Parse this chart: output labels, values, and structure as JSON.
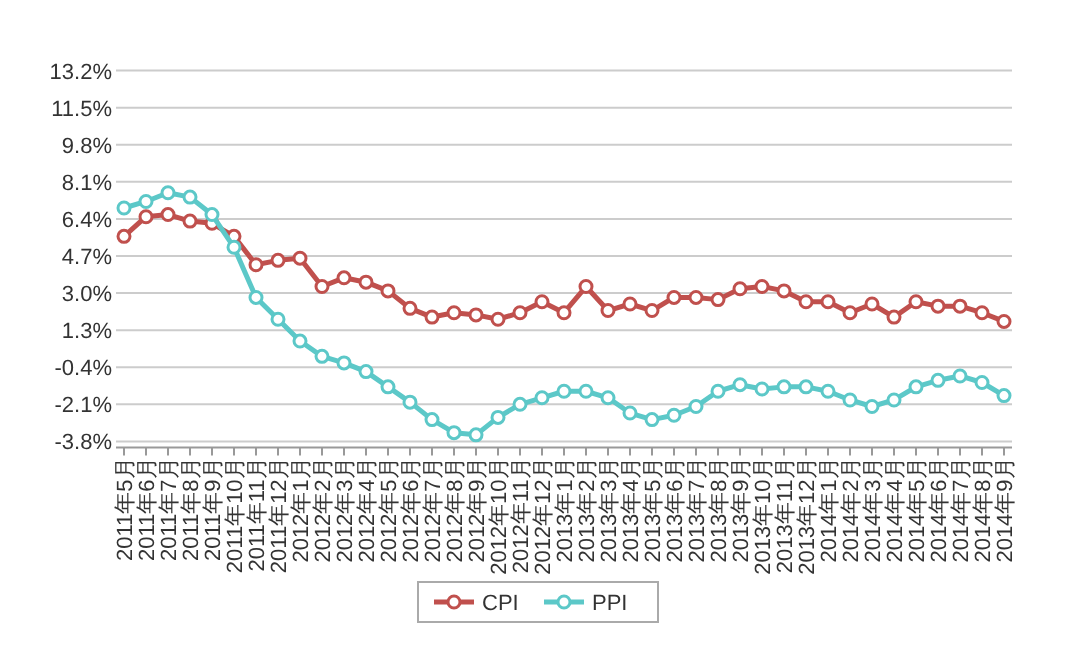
{
  "chart_data": {
    "type": "line",
    "categories": [
      "2011年5月",
      "2011年6月",
      "2011年7月",
      "2011年8月",
      "2011年9月",
      "2011年10月",
      "2011年11月",
      "2011年12月",
      "2012年1月",
      "2012年2月",
      "2012年3月",
      "2012年4月",
      "2012年5月",
      "2012年6月",
      "2012年7月",
      "2012年8月",
      "2012年9月",
      "2012年10月",
      "2012年11月",
      "2012年12月",
      "2013年1月",
      "2013年2月",
      "2013年3月",
      "2013年4月",
      "2013年5月",
      "2013年6月",
      "2013年7月",
      "2013年8月",
      "2013年9月",
      "2013年10月",
      "2013年11月",
      "2013年12月",
      "2014年1月",
      "2014年2月",
      "2014年3月",
      "2014年4月",
      "2014年5月",
      "2014年6月",
      "2014年7月",
      "2014年8月",
      "2014年9月"
    ],
    "series": [
      {
        "name": "CPI",
        "color": "#c0504d",
        "values": [
          5.6,
          6.5,
          6.6,
          6.3,
          6.2,
          5.6,
          4.3,
          4.5,
          4.6,
          3.3,
          3.7,
          3.5,
          3.1,
          2.3,
          1.9,
          2.1,
          2.0,
          1.8,
          2.1,
          2.6,
          2.1,
          3.3,
          2.2,
          2.5,
          2.2,
          2.8,
          2.8,
          2.7,
          3.2,
          3.3,
          3.1,
          2.6,
          2.6,
          2.1,
          2.5,
          1.9,
          2.6,
          2.4,
          2.4,
          2.1,
          1.7
        ]
      },
      {
        "name": "PPI",
        "color": "#5cc8c8",
        "values": [
          6.9,
          7.2,
          7.6,
          7.4,
          6.6,
          5.1,
          2.8,
          1.8,
          0.8,
          0.1,
          -0.2,
          -0.6,
          -1.3,
          -2.0,
          -2.8,
          -3.4,
          -3.5,
          -2.7,
          -2.1,
          -1.8,
          -1.5,
          -1.5,
          -1.8,
          -2.5,
          -2.8,
          -2.6,
          -2.2,
          -1.5,
          -1.2,
          -1.4,
          -1.3,
          -1.3,
          -1.5,
          -1.9,
          -2.2,
          -1.9,
          -1.3,
          -1.0,
          -0.8,
          -1.1,
          -1.7
        ]
      }
    ],
    "ylim": [
      -3.8,
      13.2
    ],
    "yticks": [
      {
        "value": -3.8,
        "label": "-3.8%"
      },
      {
        "value": -2.1,
        "label": "-2.1%"
      },
      {
        "value": -0.4,
        "label": "-0.4%"
      },
      {
        "value": 1.3,
        "label": "1.3%"
      },
      {
        "value": 3.0,
        "label": "3.0%"
      },
      {
        "value": 4.7,
        "label": "4.7%"
      },
      {
        "value": 6.4,
        "label": "6.4%"
      },
      {
        "value": 8.1,
        "label": "8.1%"
      },
      {
        "value": 9.8,
        "label": "9.8%"
      },
      {
        "value": 11.5,
        "label": "11.5%"
      },
      {
        "value": 13.2,
        "label": "13.2%"
      }
    ],
    "grid": "y",
    "legend": "bottom",
    "marker": "circle",
    "line_style": "solid"
  }
}
